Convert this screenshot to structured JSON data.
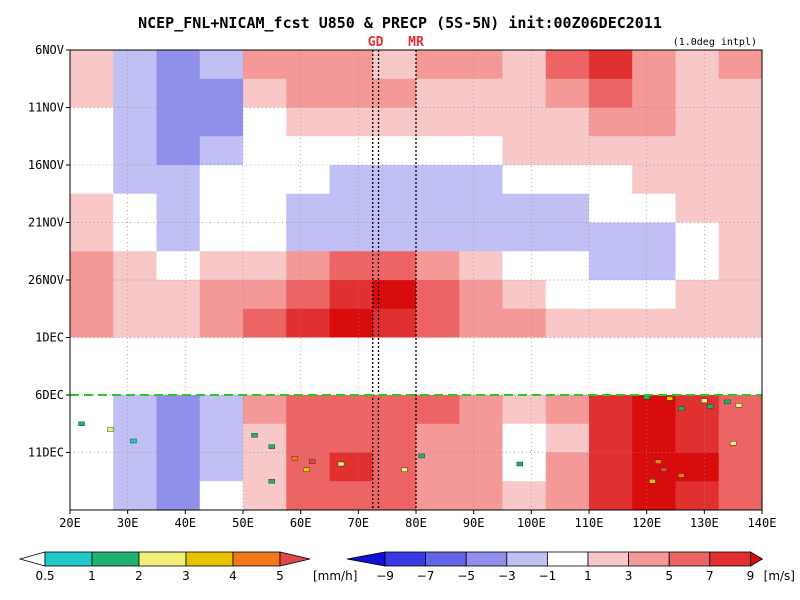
{
  "chart_data": {
    "type": "heatmap",
    "title": "NCEP_FNL+NICAM_fcst U850 & PRECP (5S-5N) init:00Z06DEC2011",
    "interp_note": "(1.0deg intpl)",
    "x_axis": {
      "range_deg_east": [
        20,
        140
      ],
      "ticks": [
        {
          "value": 20,
          "label": "20E"
        },
        {
          "value": 30,
          "label": "30E"
        },
        {
          "value": 40,
          "label": "40E"
        },
        {
          "value": 50,
          "label": "50E"
        },
        {
          "value": 60,
          "label": "60E"
        },
        {
          "value": 70,
          "label": "70E"
        },
        {
          "value": 80,
          "label": "80E"
        },
        {
          "value": 90,
          "label": "90E"
        },
        {
          "value": 100,
          "label": "100E"
        },
        {
          "value": 110,
          "label": "110E"
        },
        {
          "value": 120,
          "label": "120E"
        },
        {
          "value": 130,
          "label": "130E"
        },
        {
          "value": 140,
          "label": "140E"
        }
      ]
    },
    "y_axis": {
      "range_days_since_6nov": [
        0,
        40
      ],
      "direction": "time increases downward",
      "ticks": [
        {
          "value": 0,
          "label": "6NOV"
        },
        {
          "value": 5,
          "label": "11NOV"
        },
        {
          "value": 10,
          "label": "16NOV"
        },
        {
          "value": 15,
          "label": "21NOV"
        },
        {
          "value": 20,
          "label": "26NOV"
        },
        {
          "value": 25,
          "label": "1DEC"
        },
        {
          "value": 30,
          "label": "6DEC"
        },
        {
          "value": 35,
          "label": "11DEC"
        }
      ]
    },
    "missing_data_days": [
      25,
      30
    ],
    "init_line_day": 30,
    "station_lines": [
      {
        "label": "GD",
        "lon_deg_east": [
          72.5,
          73.5
        ]
      },
      {
        "label": "MR",
        "lon_deg_east": [
          80
        ]
      }
    ],
    "u850_field": {
      "variable": "U850",
      "grid": "days 0-40 in 2.5-day rows x 20E-140E in 7.5-degree columns, m/s",
      "rows": [
        {
          "day": 0,
          "values": [
            1,
            -3,
            -5,
            -3,
            3,
            3,
            3,
            1,
            3,
            3,
            1,
            5,
            7,
            3,
            1,
            3
          ]
        },
        {
          "day": 2.5,
          "values": [
            1,
            -3,
            -5,
            -5,
            1,
            3,
            3,
            3,
            1,
            1,
            1,
            3,
            5,
            3,
            1,
            1
          ]
        },
        {
          "day": 5,
          "values": [
            -1,
            -3,
            -5,
            -5,
            -1,
            1,
            1,
            1,
            1,
            1,
            1,
            1,
            3,
            3,
            1,
            1
          ]
        },
        {
          "day": 7.5,
          "values": [
            -1,
            -3,
            -5,
            -3,
            -1,
            -1,
            -1,
            -1,
            -1,
            -1,
            1,
            1,
            1,
            1,
            1,
            1
          ]
        },
        {
          "day": 10,
          "values": [
            -1,
            -3,
            -3,
            -1,
            -1,
            -1,
            -3,
            -3,
            -3,
            -3,
            -1,
            -1,
            -1,
            1,
            1,
            1
          ]
        },
        {
          "day": 12.5,
          "values": [
            1,
            -1,
            -3,
            -1,
            -1,
            -3,
            -3,
            -3,
            -3,
            -3,
            -3,
            -3,
            -1,
            -1,
            1,
            1
          ]
        },
        {
          "day": 15,
          "values": [
            1,
            -1,
            -3,
            -1,
            -1,
            -3,
            -3,
            -3,
            -3,
            -3,
            -3,
            -3,
            -3,
            -3,
            -1,
            1
          ]
        },
        {
          "day": 17.5,
          "values": [
            3,
            1,
            -1,
            1,
            1,
            3,
            5,
            5,
            3,
            1,
            -1,
            -1,
            -3,
            -3,
            -1,
            1
          ]
        },
        {
          "day": 20,
          "values": [
            3,
            1,
            1,
            3,
            3,
            5,
            7,
            9,
            5,
            3,
            1,
            -1,
            -1,
            -1,
            1,
            1
          ]
        },
        {
          "day": 22.5,
          "values": [
            3,
            1,
            1,
            3,
            5,
            7,
            9,
            7,
            5,
            3,
            3,
            1,
            1,
            1,
            1,
            1
          ]
        },
        {
          "day": 30,
          "values": [
            -1,
            -3,
            -5,
            -3,
            3,
            5,
            5,
            5,
            5,
            3,
            1,
            3,
            7,
            9,
            7,
            5
          ]
        },
        {
          "day": 32.5,
          "values": [
            -1,
            -3,
            -5,
            -3,
            1,
            5,
            5,
            5,
            3,
            3,
            -1,
            1,
            7,
            9,
            7,
            5
          ]
        },
        {
          "day": 35,
          "values": [
            -1,
            -3,
            -5,
            -3,
            1,
            5,
            7,
            5,
            3,
            3,
            -1,
            3,
            7,
            9,
            9,
            5
          ]
        },
        {
          "day": 37.5,
          "values": [
            -1,
            -3,
            -5,
            -1,
            1,
            5,
            5,
            5,
            3,
            3,
            1,
            3,
            7,
            9,
            7,
            5
          ]
        }
      ]
    },
    "precip_field": {
      "variable": "PRECP",
      "note": "scattered cells above 0.5 mm/h, mostly after 6DEC",
      "cells": [
        {
          "day": 30.2,
          "lon": 120,
          "value": 1.5
        },
        {
          "day": 30.3,
          "lon": 124,
          "value": 3
        },
        {
          "day": 30.5,
          "lon": 130,
          "value": 2
        },
        {
          "day": 30.6,
          "lon": 134,
          "value": 1
        },
        {
          "day": 30.9,
          "lon": 136,
          "value": 2
        },
        {
          "day": 31.0,
          "lon": 131,
          "value": 1.5
        },
        {
          "day": 31.2,
          "lon": 126,
          "value": 1
        },
        {
          "day": 32.5,
          "lon": 22,
          "value": 1
        },
        {
          "day": 33.0,
          "lon": 27,
          "value": 2
        },
        {
          "day": 34.0,
          "lon": 31,
          "value": 0.8
        },
        {
          "day": 33.5,
          "lon": 52,
          "value": 1.5
        },
        {
          "day": 34.5,
          "lon": 55,
          "value": 1
        },
        {
          "day": 35.5,
          "lon": 59,
          "value": 4
        },
        {
          "day": 35.8,
          "lon": 62,
          "value": 5
        },
        {
          "day": 36.5,
          "lon": 61,
          "value": 3
        },
        {
          "day": 36.0,
          "lon": 67,
          "value": 2
        },
        {
          "day": 35.3,
          "lon": 81,
          "value": 1
        },
        {
          "day": 36.5,
          "lon": 78,
          "value": 2
        },
        {
          "day": 36.0,
          "lon": 98,
          "value": 1
        },
        {
          "day": 35.8,
          "lon": 122,
          "value": 4
        },
        {
          "day": 36.5,
          "lon": 123,
          "value": 5
        },
        {
          "day": 37.0,
          "lon": 126,
          "value": 4
        },
        {
          "day": 37.5,
          "lon": 121,
          "value": 3
        },
        {
          "day": 34.2,
          "lon": 135,
          "value": 2
        },
        {
          "day": 37.5,
          "lon": 55,
          "value": 1
        }
      ]
    },
    "colorbars": {
      "precip": {
        "levels": [
          {
            "value": 0.5,
            "label": "0.5",
            "color": "#20c8c8"
          },
          {
            "value": 1,
            "label": "1",
            "color": "#20b070"
          },
          {
            "value": 2,
            "label": "2",
            "color": "#f0f078"
          },
          {
            "value": 3,
            "label": "3",
            "color": "#e8c400"
          },
          {
            "value": 4,
            "label": "4",
            "color": "#f07818"
          },
          {
            "value": 5,
            "label": "5",
            "color": "#e04848"
          }
        ],
        "units": "[mm/h]"
      },
      "u850": {
        "levels": [
          {
            "value": -9,
            "label": "−9"
          },
          {
            "value": -7,
            "label": "−7"
          },
          {
            "value": -5,
            "label": "−5"
          },
          {
            "value": -3,
            "label": "−3"
          },
          {
            "value": -1,
            "label": "−1"
          },
          {
            "value": 1,
            "label": "1"
          },
          {
            "value": 3,
            "label": "3"
          },
          {
            "value": 5,
            "label": "5"
          },
          {
            "value": 7,
            "label": "7"
          },
          {
            "value": 9,
            "label": "9"
          }
        ],
        "colors": [
          "#1010d8",
          "#3838e4",
          "#6464e8",
          "#9090ec",
          "#c0c0f4",
          "#ffffff",
          "#f8c8c8",
          "#f49898",
          "#ec6464",
          "#e03030",
          "#d80c0c"
        ],
        "units": "[m/s]"
      }
    }
  }
}
